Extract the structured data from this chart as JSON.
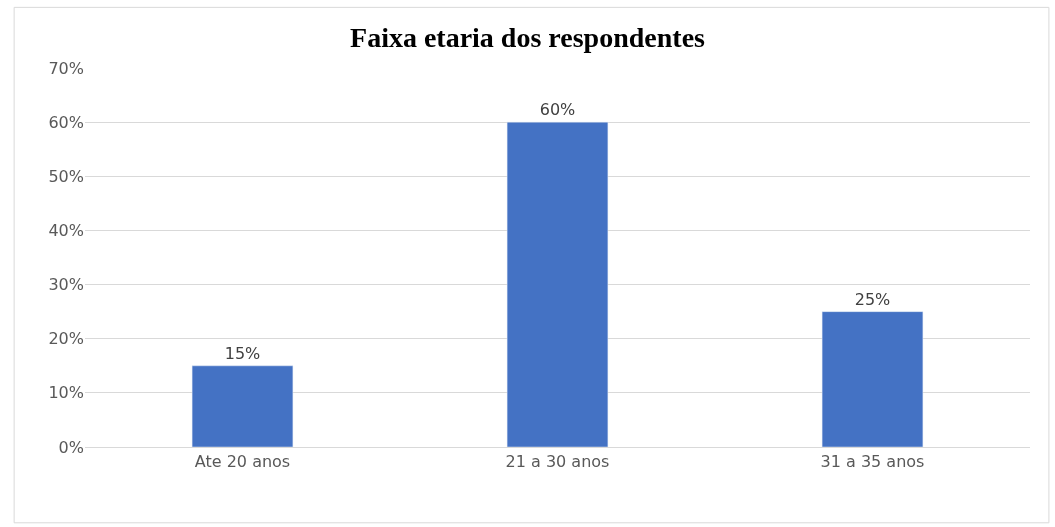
{
  "chart_data": {
    "type": "bar",
    "title": "Faixa etaria dos respondentes",
    "categories": [
      "Ate 20 anos",
      "21 a 30 anos",
      "31 a 35 anos"
    ],
    "values": [
      15,
      60,
      25
    ],
    "color": "#4472c4",
    "value_labels": [
      "15%",
      "60%",
      "25%"
    ],
    "ylim": [
      0,
      70
    ],
    "yticks": [
      {
        "value": 0,
        "label": "0%"
      },
      {
        "value": 10,
        "label": "10%"
      },
      {
        "value": 20,
        "label": "20%"
      },
      {
        "value": 30,
        "label": "30%"
      },
      {
        "value": 40,
        "label": "40%"
      },
      {
        "value": 50,
        "label": "50%"
      },
      {
        "value": 60,
        "label": "60%"
      },
      {
        "value": 70,
        "label": "70%"
      }
    ],
    "grid": "y"
  }
}
